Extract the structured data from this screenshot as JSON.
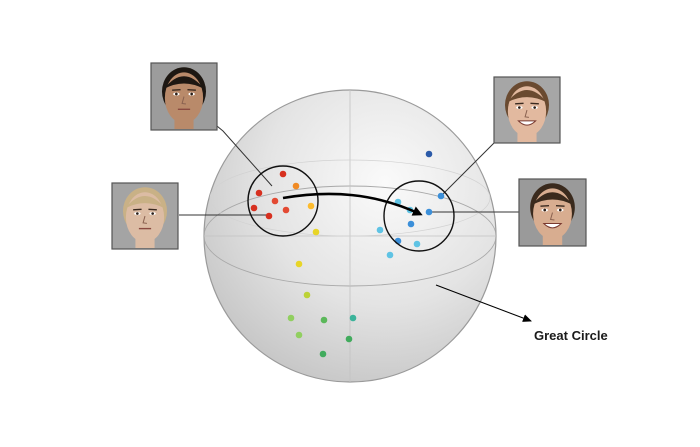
{
  "labels": {
    "great_circle": "Great Circle"
  },
  "photos": [
    {
      "id": "neutral-male",
      "expression": "neutral",
      "skin": "#b98a6a",
      "hair": "#1d1712",
      "bg": "#9c9c9c"
    },
    {
      "id": "neutral-female",
      "expression": "neutral",
      "skin": "#dcbca4",
      "hair": "#c9b186",
      "bg": "#a4a4a4"
    },
    {
      "id": "smiling-female",
      "expression": "smile",
      "skin": "#e2b99f",
      "hair": "#6a4a30",
      "bg": "#a6a6a6"
    },
    {
      "id": "smiling-male",
      "expression": "smile",
      "skin": "#d8ad90",
      "hair": "#3a2a1d",
      "bg": "#9a9a9a"
    }
  ],
  "point_colors": [
    "#d7301f",
    "#e34a33",
    "#f08a24",
    "#fdbb2d",
    "#e8d527",
    "#bcd236",
    "#91cf60",
    "#5bb85a",
    "#41ab5d",
    "#3bb39a",
    "#5fc3e4",
    "#3b8fd9",
    "#2b5aa8"
  ]
}
